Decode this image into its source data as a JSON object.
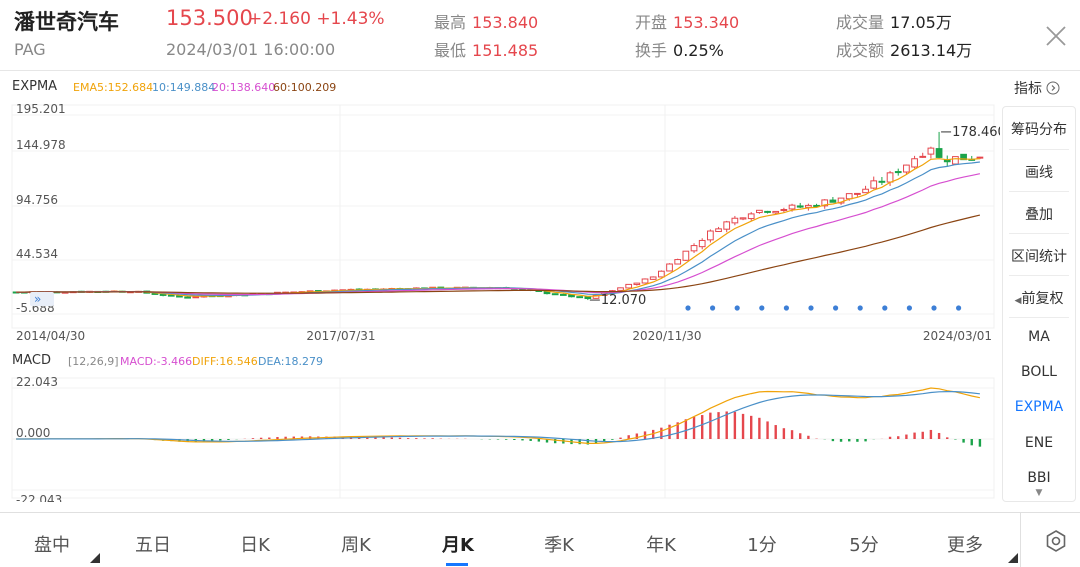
{
  "header": {
    "name": "潘世奇汽车",
    "code": "PAG",
    "price": "153.500",
    "change": "+2.160 +1.43%",
    "datetime": "2024/03/01 16:00:00",
    "stats": [
      {
        "label": "最高",
        "value": "153.840",
        "color": "red"
      },
      {
        "label": "最低",
        "value": "151.485",
        "color": "red"
      },
      {
        "label": "开盘",
        "value": "153.340",
        "color": "red"
      },
      {
        "label": "换手",
        "value": "0.25%",
        "color": "black"
      },
      {
        "label": "成交量",
        "value": "17.05万",
        "color": "black"
      },
      {
        "label": "成交额",
        "value": "2613.14万",
        "color": "black"
      }
    ]
  },
  "indicator_bar": {
    "name": "EXPMA",
    "ema5": "EMA5:152.684",
    "ema10": "10:149.884",
    "ema20": "20:138.640",
    "ema60": "60:100.209",
    "indicator_btn": "指标"
  },
  "macd_bar": {
    "name": "MACD",
    "params": "[12,26,9]",
    "macd": "MACD:-3.466",
    "diff": "DIFF:16.546",
    "dea": "DEA:18.279"
  },
  "sidebar": [
    "筹码分布",
    "画线",
    "叠加",
    "区间统计",
    "前复权",
    "MA",
    "BOLL",
    "EXPMA",
    "ENE",
    "BBI"
  ],
  "sidebar_active": "EXPMA",
  "tabs": [
    "盘中",
    "五日",
    "日K",
    "周K",
    "月K",
    "季K",
    "年K",
    "1分",
    "5分",
    "更多"
  ],
  "active_tab": "月K",
  "colors": {
    "up": "#e5474d",
    "down": "#1aa34a",
    "ema5": "#f0a30a",
    "ema10": "#4a90c8",
    "ema20": "#d64fd0",
    "ema60": "#8b4513",
    "accent": "#1677ff"
  },
  "chart_data": [
    {
      "type": "candlestick",
      "title": "",
      "y_ticks": [
        "195.201",
        "144.978",
        "94.756",
        "44.534",
        "-5.688"
      ],
      "x_ticks": [
        "2014/04/30",
        "2017/07/31",
        "2020/11/30",
        "2024/03/01"
      ],
      "ylim": [
        -5.688,
        195.201
      ],
      "annotations": {
        "max": "178.460",
        "min": "12.070"
      },
      "close_series_approx": [
        {
          "x": "2014/04/30",
          "y": 20
        },
        {
          "x": "2015/06",
          "y": 22
        },
        {
          "x": "2016/01",
          "y": 15
        },
        {
          "x": "2016/06",
          "y": 16
        },
        {
          "x": "2017/07/31",
          "y": 22
        },
        {
          "x": "2018/06",
          "y": 24
        },
        {
          "x": "2019/06",
          "y": 25
        },
        {
          "x": "2020/03",
          "y": 13
        },
        {
          "x": "2020/11/30",
          "y": 40
        },
        {
          "x": "2021/06",
          "y": 95
        },
        {
          "x": "2022/06",
          "y": 105
        },
        {
          "x": "2023/06",
          "y": 135
        },
        {
          "x": "2024/03/01",
          "y": 153.5
        }
      ]
    },
    {
      "type": "macd",
      "y_ticks": [
        "22.043",
        "0.000",
        "-22.043"
      ],
      "ylim": [
        -22.043,
        22.043
      ]
    }
  ]
}
